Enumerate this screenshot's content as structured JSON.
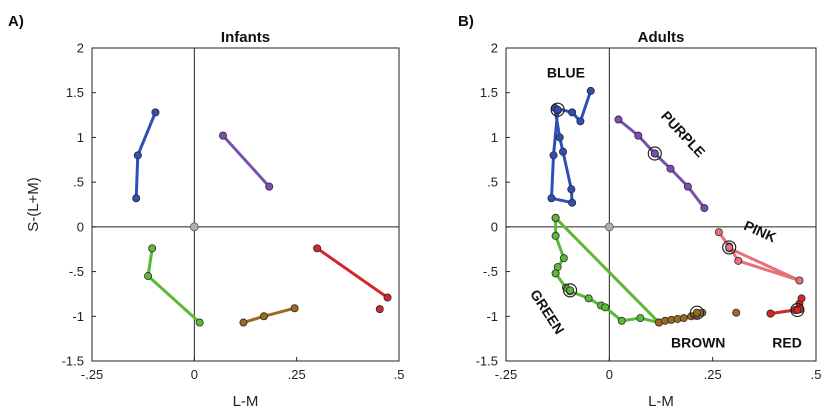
{
  "chart_data": [
    {
      "type": "line",
      "panel_label": "A)",
      "title": "Infants",
      "xlabel": "L-M",
      "ylabel": "S-(L+M)",
      "xlim": [
        -0.25,
        0.5
      ],
      "ylim": [
        -1.5,
        2
      ],
      "xticks": [
        -0.25,
        0,
        0.25,
        0.5
      ],
      "xtick_labels": [
        "-.25",
        "0",
        ".25",
        ".5"
      ],
      "yticks": [
        -1.5,
        -1,
        -0.5,
        0,
        0.5,
        1,
        1.5,
        2
      ],
      "ytick_labels": [
        "-1.5",
        "-1",
        "-.5",
        "0",
        ".5",
        "1",
        "1.5",
        "2"
      ],
      "grid": false,
      "origin": {
        "x": 0,
        "y": 0,
        "color": "#aab0b8"
      },
      "series": [
        {
          "color": "#2f4fb8",
          "points": [
            [
              -0.095,
              1.28
            ],
            [
              -0.138,
              0.8
            ],
            [
              -0.142,
              0.32
            ]
          ]
        },
        {
          "color": "#7b4fb0",
          "points": [
            [
              0.07,
              1.02
            ],
            [
              0.183,
              0.45
            ]
          ]
        },
        {
          "color": "#5cb935",
          "points": [
            [
              -0.103,
              -0.24
            ],
            [
              -0.113,
              -0.55
            ],
            [
              0.013,
              -1.07
            ]
          ]
        },
        {
          "color": "#9a6a20",
          "points": [
            [
              0.12,
              -1.07
            ],
            [
              0.17,
              -1.0
            ],
            [
              0.245,
              -0.91
            ]
          ]
        },
        {
          "color": "#d32626",
          "points": [
            [
              0.3,
              -0.24
            ],
            [
              0.472,
              -0.79
            ]
          ]
        },
        {
          "color": "#d32626",
          "points": [
            [
              0.453,
              -0.92
            ]
          ],
          "line": false
        }
      ]
    },
    {
      "type": "line",
      "panel_label": "B)",
      "title": "Adults",
      "xlabel": "L-M",
      "ylabel": "",
      "xlim": [
        -0.25,
        0.5
      ],
      "ylim": [
        -1.5,
        2
      ],
      "xticks": [
        -0.25,
        0,
        0.25,
        0.5
      ],
      "xtick_labels": [
        "-.25",
        "0",
        ".25",
        ".5"
      ],
      "yticks": [
        -1.5,
        -1,
        -0.5,
        0,
        0.5,
        1,
        1.5,
        2
      ],
      "ytick_labels": [
        "-1.5",
        "-1",
        "-.5",
        "0",
        ".5",
        "1",
        "1.5",
        "2"
      ],
      "grid": false,
      "origin": {
        "x": 0,
        "y": 0,
        "color": "#aab0b8"
      },
      "series": [
        {
          "color": "#2f4fb8",
          "points": [
            [
              -0.125,
              1.3
            ],
            [
              -0.135,
              0.8
            ],
            [
              -0.14,
              0.32
            ],
            [
              -0.09,
              0.27
            ],
            [
              -0.092,
              0.42
            ],
            [
              -0.112,
              0.84
            ],
            [
              -0.12,
              1.0
            ],
            [
              -0.132,
              1.33
            ],
            [
              -0.09,
              1.28
            ],
            [
              -0.07,
              1.18
            ],
            [
              -0.045,
              1.52
            ]
          ],
          "highlight": [
            [
              -0.125,
              1.31
            ]
          ]
        },
        {
          "color": "#7b4fb0",
          "points": [
            [
              0.022,
              1.2
            ],
            [
              0.07,
              1.02
            ],
            [
              0.11,
              0.82
            ],
            [
              0.148,
              0.65
            ],
            [
              0.19,
              0.45
            ],
            [
              0.23,
              0.21
            ]
          ],
          "highlight": [
            [
              0.11,
              0.82
            ]
          ]
        },
        {
          "color": "#e8707a",
          "points": [
            [
              0.265,
              -0.06
            ],
            [
              0.29,
              -0.22
            ],
            [
              0.312,
              -0.38
            ],
            [
              0.46,
              -0.6
            ],
            [
              0.29,
              -0.24
            ]
          ],
          "highlight": [
            [
              0.29,
              -0.23
            ]
          ]
        },
        {
          "color": "#5cb935",
          "points": [
            [
              -0.13,
              0.1
            ],
            [
              -0.13,
              -0.1
            ],
            [
              -0.11,
              -0.35
            ],
            [
              -0.125,
              -0.45
            ],
            [
              -0.13,
              -0.52
            ],
            [
              -0.105,
              -0.68
            ],
            [
              -0.095,
              -0.72
            ],
            [
              -0.05,
              -0.8
            ],
            [
              -0.02,
              -0.88
            ],
            [
              -0.01,
              -0.9
            ],
            [
              0.03,
              -1.05
            ],
            [
              0.075,
              -1.02
            ],
            [
              0.12,
              -1.07
            ],
            [
              -0.13,
              0.1
            ]
          ],
          "highlight": [
            [
              -0.095,
              -0.71
            ]
          ]
        },
        {
          "color": "#9a6a20",
          "points": [
            [
              0.12,
              -1.07
            ],
            [
              0.135,
              -1.05
            ],
            [
              0.15,
              -1.04
            ],
            [
              0.165,
              -1.03
            ],
            [
              0.18,
              -1.02
            ],
            [
              0.198,
              -1.0
            ],
            [
              0.212,
              -0.98
            ],
            [
              0.225,
              -0.96
            ]
          ],
          "highlight": [
            [
              0.212,
              -0.96
            ]
          ]
        },
        {
          "color": "#9a6a20",
          "points": [
            [
              0.307,
              -0.96
            ]
          ],
          "line": false
        },
        {
          "color": "#d32626",
          "points": [
            [
              0.39,
              -0.97
            ],
            [
              0.45,
              -0.93
            ],
            [
              0.46,
              -0.86
            ],
            [
              0.465,
              -0.8
            ],
            [
              0.462,
              -0.92
            ],
            [
              0.39,
              -0.97
            ]
          ],
          "highlight": [
            [
              0.455,
              -0.93
            ]
          ]
        }
      ],
      "annotations": [
        {
          "text": "BLUE",
          "x": -0.105,
          "y": 1.67,
          "rotate": 0
        },
        {
          "text": "PURPLE",
          "x": 0.17,
          "y": 1.0,
          "rotate": 47
        },
        {
          "text": "PINK",
          "x": 0.36,
          "y": -0.1,
          "rotate": 24
        },
        {
          "text": "GREEN",
          "x": -0.16,
          "y": -0.98,
          "rotate": 57
        },
        {
          "text": "BROWN",
          "x": 0.215,
          "y": -1.35,
          "rotate": 0
        },
        {
          "text": "RED",
          "x": 0.43,
          "y": -1.35,
          "rotate": 0
        }
      ]
    }
  ]
}
